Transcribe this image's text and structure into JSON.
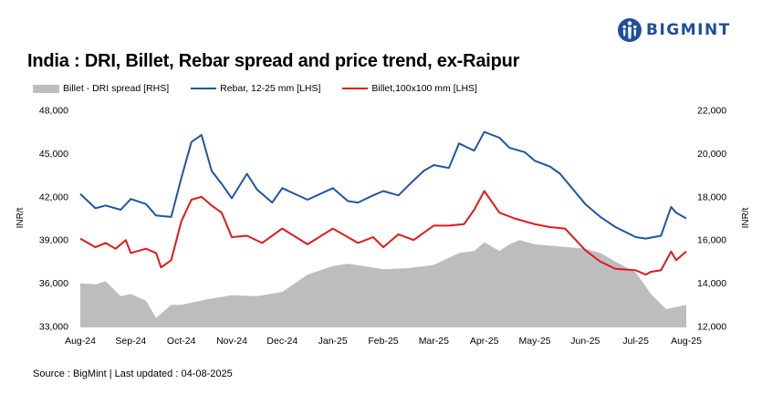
{
  "brand": {
    "name": "BIGMINT",
    "color": "#1f4e9c"
  },
  "title": "India : DRI, Billet, Rebar spread and price trend, ex-Raipur",
  "source": "Source : BigMint | Last updated : 04-08-2025",
  "chart_data": {
    "type": "line",
    "title": "India : DRI, Billet, Rebar spread and price trend, ex-Raipur",
    "ylabel_left": "INR/t",
    "ylabel_right": "INR/t",
    "ylim_left": [
      33000,
      48000
    ],
    "ylim_right": [
      12000,
      22000
    ],
    "yticks_left": [
      "33,000",
      "36,000",
      "39,000",
      "42,000",
      "45,000",
      "48,000"
    ],
    "yticks_right": [
      "12,000",
      "14,000",
      "16,000",
      "18,000",
      "20,000",
      "22,000"
    ],
    "xticks": [
      "Aug-24",
      "Sep-24",
      "Oct-24",
      "Nov-24",
      "Dec-24",
      "Jan-25",
      "Feb-25",
      "Mar-25",
      "Apr-25",
      "May-25",
      "Jun-25",
      "Jul-25",
      "Aug-25"
    ],
    "grid": false,
    "legend_position": "top",
    "series": [
      {
        "name": "Billet - DRI spread  [RHS]",
        "kind": "area",
        "axis": "right",
        "color": "#bdbdbd",
        "x": [
          0,
          0.3,
          0.5,
          0.8,
          1.0,
          1.3,
          1.5,
          1.6,
          1.8,
          2.0,
          2.5,
          3.0,
          3.5,
          4.0,
          4.5,
          5.0,
          5.3,
          5.6,
          6.0,
          6.5,
          7.0,
          7.5,
          7.8,
          8.0,
          8.3,
          8.5,
          8.7,
          9.0,
          9.5,
          10.0,
          10.3,
          10.6,
          11.0,
          11.3,
          11.6,
          12.0
        ],
        "values": [
          14000,
          13950,
          14100,
          13400,
          13500,
          13200,
          12400,
          12600,
          13000,
          13000,
          13250,
          13450,
          13400,
          13600,
          14400,
          14800,
          14900,
          14800,
          14650,
          14700,
          14850,
          15400,
          15500,
          15900,
          15500,
          15800,
          16000,
          15800,
          15700,
          15600,
          15400,
          15000,
          14500,
          13500,
          12800,
          13000
        ]
      },
      {
        "name": "Rebar, 12-25 mm [LHS]",
        "kind": "line",
        "axis": "left",
        "color": "#1f55a3",
        "x": [
          0,
          0.3,
          0.5,
          0.8,
          1.0,
          1.3,
          1.5,
          1.8,
          2.0,
          2.2,
          2.3,
          2.4,
          2.6,
          2.8,
          3.0,
          3.3,
          3.5,
          3.8,
          4.0,
          4.5,
          5.0,
          5.3,
          5.5,
          5.8,
          6.0,
          6.3,
          6.5,
          6.8,
          7.0,
          7.3,
          7.5,
          7.8,
          8.0,
          8.3,
          8.5,
          8.8,
          9.0,
          9.3,
          9.5,
          10.0,
          10.3,
          10.6,
          11.0,
          11.2,
          11.5,
          11.7,
          11.8,
          12.0
        ],
        "values": [
          42200,
          41200,
          41400,
          41100,
          41850,
          41500,
          40700,
          40600,
          43300,
          45800,
          46050,
          46300,
          43800,
          42900,
          41900,
          43600,
          42500,
          41600,
          42600,
          41800,
          42600,
          41700,
          41600,
          42100,
          42400,
          42100,
          42800,
          43800,
          44200,
          44000,
          45700,
          45200,
          46500,
          46100,
          45400,
          45100,
          44500,
          44100,
          43600,
          41500,
          40600,
          39900,
          39200,
          39100,
          39300,
          41300,
          40900,
          40500
        ]
      },
      {
        "name": "Billet,100x100 mm [LHS]",
        "kind": "line",
        "axis": "left",
        "color": "#e0191b",
        "x": [
          0,
          0.3,
          0.5,
          0.7,
          0.9,
          1.0,
          1.3,
          1.5,
          1.6,
          1.8,
          2.0,
          2.2,
          2.4,
          2.6,
          2.8,
          3.0,
          3.3,
          3.6,
          4.0,
          4.5,
          5.0,
          5.5,
          5.8,
          6.0,
          6.3,
          6.6,
          7.0,
          7.3,
          7.6,
          7.8,
          8.0,
          8.3,
          8.6,
          9.0,
          9.3,
          9.6,
          10.0,
          10.3,
          10.6,
          11.0,
          11.2,
          11.3,
          11.5,
          11.7,
          11.8,
          12.0
        ],
        "values": [
          39100,
          38500,
          38800,
          38400,
          39000,
          38100,
          38400,
          38100,
          37100,
          37600,
          40300,
          41800,
          42000,
          41400,
          40900,
          39200,
          39300,
          38800,
          39800,
          38700,
          39800,
          38800,
          39200,
          38500,
          39400,
          39000,
          40000,
          40000,
          40100,
          41100,
          42400,
          40900,
          40500,
          40100,
          39900,
          39800,
          38300,
          37500,
          37000,
          36900,
          36600,
          36800,
          36900,
          38200,
          37600,
          38200
        ]
      }
    ]
  }
}
